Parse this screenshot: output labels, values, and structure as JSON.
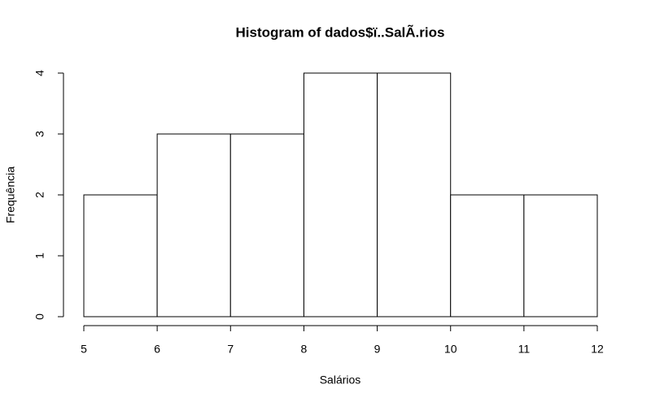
{
  "chart_data": {
    "type": "histogram",
    "title": "Histogram of dados$ï..SalÃ.rios",
    "x_label": "Salários",
    "y_label": "Frequência",
    "bins": [
      5,
      6,
      7,
      8,
      9,
      10,
      11,
      12
    ],
    "values": [
      2,
      3,
      3,
      4,
      4,
      2,
      2
    ],
    "color": "#ffffff",
    "xlim": [
      5,
      12
    ],
    "xticks": [
      5,
      6,
      7,
      8,
      9,
      10,
      11,
      12
    ],
    "ylim": [
      0,
      4
    ],
    "yticks": [
      0,
      1,
      2,
      3,
      4
    ]
  }
}
